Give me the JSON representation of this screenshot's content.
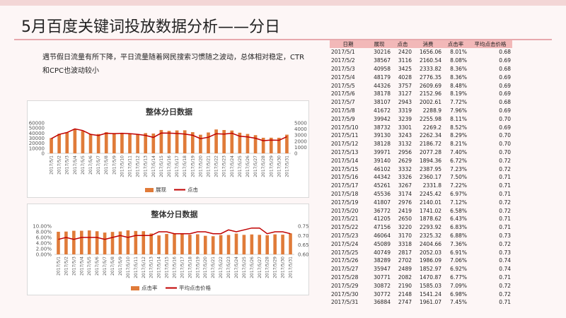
{
  "title": "5月百度关键词投放数据分析——分日",
  "description": "遇节假日流量有所下降，平日流量随着网民搜索习惯随之波动，总体相对稳定，CTR和CPC也波动较小",
  "colors": {
    "bar": "#e07b39",
    "line": "#c00000",
    "header": "#f2b8b8",
    "accent": "#e7a9ad"
  },
  "table": {
    "columns": [
      "日期",
      "展现",
      "点击",
      "消费",
      "点击率",
      "平均点击价格"
    ],
    "rows": [
      [
        "2017/5/1",
        "30216",
        "2420",
        "1656.06",
        "8.01%",
        "0.68"
      ],
      [
        "2017/5/2",
        "38567",
        "3116",
        "2160.54",
        "8.08%",
        "0.69"
      ],
      [
        "2017/5/3",
        "40958",
        "3425",
        "2333.82",
        "8.36%",
        "0.68"
      ],
      [
        "2017/5/4",
        "48179",
        "4028",
        "2776.35",
        "8.36%",
        "0.69"
      ],
      [
        "2017/5/5",
        "44326",
        "3757",
        "2609.69",
        "8.48%",
        "0.69"
      ],
      [
        "2017/5/6",
        "38178",
        "3127",
        "2152.96",
        "8.19%",
        "0.69"
      ],
      [
        "2017/5/7",
        "38107",
        "2943",
        "2002.61",
        "7.72%",
        "0.68"
      ],
      [
        "2017/5/8",
        "41672",
        "3319",
        "2288.9",
        "7.96%",
        "0.69"
      ],
      [
        "2017/5/9",
        "39942",
        "3239",
        "2255.98",
        "8.11%",
        "0.70"
      ],
      [
        "2017/5/10",
        "38732",
        "3301",
        "2269.2",
        "8.52%",
        "0.69"
      ],
      [
        "2017/5/11",
        "39130",
        "3243",
        "2262.34",
        "8.29%",
        "0.70"
      ],
      [
        "2017/5/12",
        "38128",
        "3132",
        "2186.72",
        "8.21%",
        "0.70"
      ],
      [
        "2017/5/13",
        "39971",
        "2956",
        "2077.28",
        "7.40%",
        "0.70"
      ],
      [
        "2017/5/14",
        "39140",
        "2629",
        "1894.36",
        "6.72%",
        "0.72"
      ],
      [
        "2017/5/15",
        "46102",
        "3332",
        "2387.95",
        "7.23%",
        "0.72"
      ],
      [
        "2017/5/16",
        "44342",
        "3326",
        "2360.17",
        "7.50%",
        "0.71"
      ],
      [
        "2017/5/17",
        "45261",
        "3267",
        "2331.8",
        "7.22%",
        "0.71"
      ],
      [
        "2017/5/18",
        "45536",
        "3174",
        "2245.42",
        "6.97%",
        "0.71"
      ],
      [
        "2017/5/19",
        "41807",
        "2976",
        "2140.01",
        "7.12%",
        "0.72"
      ],
      [
        "2017/5/20",
        "36772",
        "2419",
        "1741.02",
        "6.58%",
        "0.72"
      ],
      [
        "2017/5/21",
        "41205",
        "2650",
        "1878.62",
        "6.43%",
        "0.71"
      ],
      [
        "2017/5/22",
        "47156",
        "3220",
        "2293.92",
        "6.83%",
        "0.71"
      ],
      [
        "2017/5/23",
        "46064",
        "3170",
        "2325.32",
        "6.88%",
        "0.73"
      ],
      [
        "2017/5/24",
        "45089",
        "3318",
        "2404.66",
        "7.36%",
        "0.72"
      ],
      [
        "2017/5/25",
        "40749",
        "2817",
        "2052.03",
        "6.91%",
        "0.73"
      ],
      [
        "2017/5/26",
        "38289",
        "2702",
        "1986.09",
        "7.06%",
        "0.74"
      ],
      [
        "2017/5/27",
        "35947",
        "2489",
        "1852.97",
        "6.92%",
        "0.74"
      ],
      [
        "2017/5/28",
        "30771",
        "2082",
        "1470.87",
        "6.77%",
        "0.71"
      ],
      [
        "2017/5/29",
        "30872",
        "2190",
        "1585.03",
        "7.09%",
        "0.72"
      ],
      [
        "2017/5/30",
        "30772",
        "2148",
        "1541.24",
        "6.98%",
        "0.72"
      ],
      [
        "2017/5/31",
        "36884",
        "2747",
        "1961.07",
        "7.45%",
        "0.71"
      ]
    ]
  },
  "chart_data": [
    {
      "type": "bar",
      "title": "整体分日数据",
      "categories": [
        "2017/5/1",
        "2017/5/2",
        "2017/5/3",
        "2017/5/4",
        "2017/5/5",
        "2017/5/6",
        "2017/5/7",
        "2017/5/8",
        "2017/5/9",
        "2017/5/10",
        "2017/5/11",
        "2017/5/12",
        "2017/5/13",
        "2017/5/14",
        "2017/5/15",
        "2017/5/16",
        "2017/5/17",
        "2017/5/18",
        "2017/5/19",
        "2017/5/20",
        "2017/5/21",
        "2017/5/22",
        "2017/5/23",
        "2017/5/24",
        "2017/5/25",
        "2017/5/26",
        "2017/5/27",
        "2017/5/28",
        "2017/5/29",
        "2017/5/30",
        "2017/5/31"
      ],
      "series": [
        {
          "name": "展现",
          "type": "bar",
          "axis": "left",
          "values": [
            30216,
            38567,
            40958,
            48179,
            44326,
            38178,
            38107,
            41672,
            39942,
            38732,
            39130,
            38128,
            39971,
            39140,
            46102,
            44342,
            45261,
            45536,
            41807,
            36772,
            41205,
            47156,
            46064,
            45089,
            40749,
            38289,
            35947,
            30771,
            30872,
            30772,
            36884
          ]
        },
        {
          "name": "点击",
          "type": "line",
          "axis": "right",
          "values": [
            2420,
            3116,
            3425,
            4028,
            3757,
            3127,
            2943,
            3319,
            3239,
            3301,
            3243,
            3132,
            2956,
            2629,
            3332,
            3326,
            3267,
            3174,
            2976,
            2419,
            2650,
            3220,
            3170,
            3318,
            2817,
            2702,
            2489,
            2082,
            2190,
            2148,
            2747
          ]
        }
      ],
      "left_axis": {
        "min": 0,
        "max": 60000,
        "ticks": [
          "0",
          "10000",
          "20000",
          "30000",
          "40000",
          "50000",
          "60000"
        ]
      },
      "right_axis": {
        "min": 0,
        "max": 5000,
        "ticks": [
          "0",
          "1000",
          "2000",
          "3000",
          "4000",
          "5000"
        ]
      },
      "legend": "bottom"
    },
    {
      "type": "bar",
      "title": "整体分日数据",
      "categories": [
        "2017/5/1",
        "2017/5/2",
        "2017/5/3",
        "2017/5/4",
        "2017/5/5",
        "2017/5/6",
        "2017/5/7",
        "2017/5/8",
        "2017/5/9",
        "2017/5/10",
        "2017/5/11",
        "2017/5/12",
        "2017/5/13",
        "2017/5/14",
        "2017/5/15",
        "2017/5/16",
        "2017/5/17",
        "2017/5/18",
        "2017/5/19",
        "2017/5/20",
        "2017/5/21",
        "2017/5/22",
        "2017/5/23",
        "2017/5/24",
        "2017/5/25",
        "2017/5/26",
        "2017/5/27",
        "2017/5/28",
        "2017/5/29",
        "2017/5/30",
        "2017/5/31"
      ],
      "series": [
        {
          "name": "点击率",
          "type": "bar",
          "axis": "left",
          "values": [
            8.01,
            8.08,
            8.36,
            8.36,
            8.48,
            8.19,
            7.72,
            7.96,
            8.11,
            8.52,
            8.29,
            8.21,
            7.4,
            6.72,
            7.23,
            7.5,
            7.22,
            6.97,
            7.12,
            6.58,
            6.43,
            6.83,
            6.88,
            7.36,
            6.91,
            7.06,
            6.92,
            6.77,
            7.09,
            6.98,
            7.45
          ]
        },
        {
          "name": "平均点击价格",
          "type": "line",
          "axis": "right",
          "values": [
            0.68,
            0.69,
            0.68,
            0.69,
            0.69,
            0.69,
            0.68,
            0.69,
            0.7,
            0.69,
            0.7,
            0.7,
            0.7,
            0.72,
            0.72,
            0.71,
            0.71,
            0.71,
            0.72,
            0.72,
            0.71,
            0.71,
            0.73,
            0.72,
            0.73,
            0.74,
            0.74,
            0.71,
            0.72,
            0.72,
            0.71
          ]
        }
      ],
      "left_axis": {
        "min": 0,
        "max": 10,
        "ticks": [
          "0.00%",
          "2.00%",
          "4.00%",
          "6.00%",
          "8.00%",
          "10.00%"
        ]
      },
      "right_axis": {
        "min": 0.6,
        "max": 0.75,
        "ticks": [
          "0.60",
          "0.65",
          "0.70",
          "0.75"
        ]
      },
      "legend": "bottom"
    }
  ]
}
